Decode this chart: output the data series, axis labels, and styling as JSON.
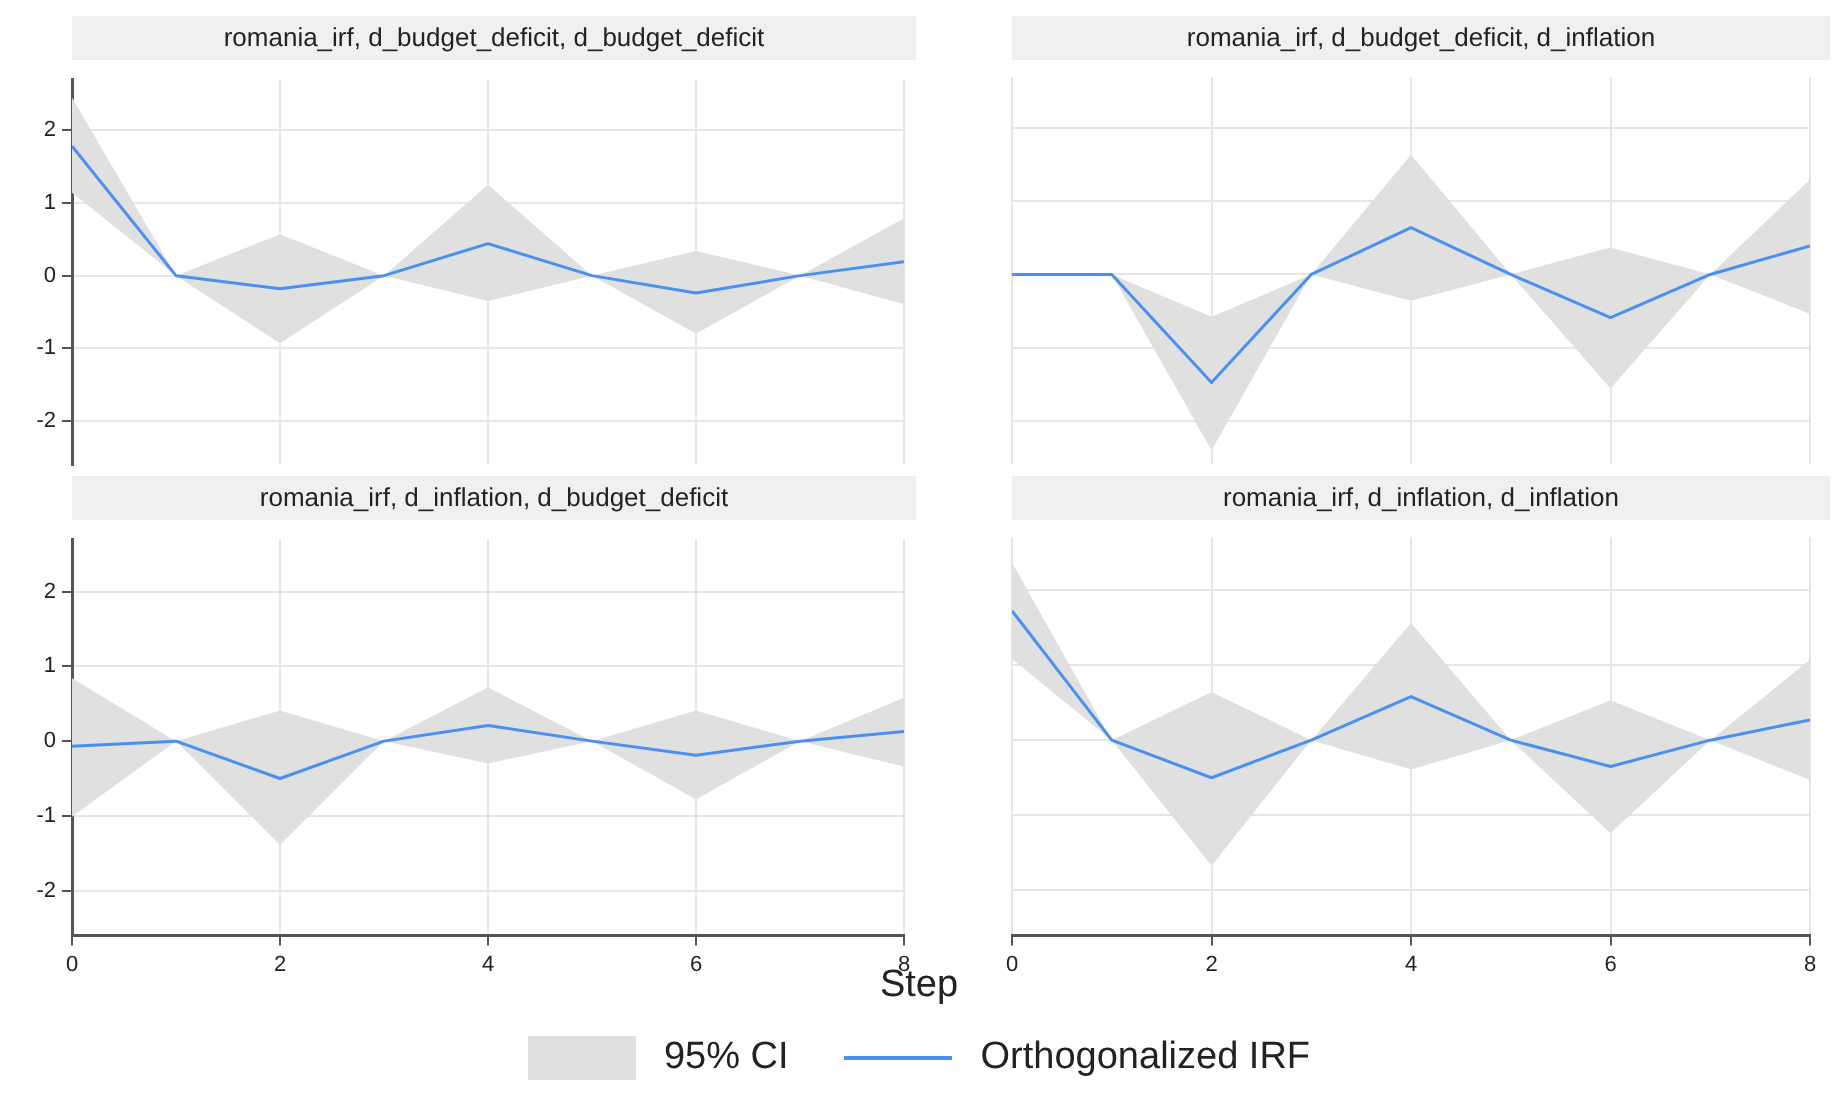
{
  "chart_data": [
    {
      "type": "line",
      "title": "romania_irf, d_budget_deficit, d_budget_deficit",
      "xlabel": "Step",
      "annotations": [
        "95% CI"
      ],
      "x": [
        0,
        1,
        2,
        3,
        4,
        5,
        6,
        7,
        8
      ],
      "xlim": [
        0,
        8
      ],
      "xticks": [
        0,
        2,
        4,
        6,
        8
      ],
      "ylim": [
        -2.6,
        2.7
      ],
      "yticks": [
        -2,
        -1,
        0,
        1,
        2
      ],
      "grid": true,
      "legend": "bottom",
      "tick_labels": "y",
      "series": [
        {
          "name": "Orthogonalized IRF",
          "color": "#4a90f0",
          "values": [
            1.78,
            0,
            -0.18,
            0,
            0.44,
            0,
            -0.24,
            0,
            0.19
          ],
          "lower": [
            1.14,
            0,
            -0.93,
            0,
            -0.35,
            0,
            -0.8,
            0,
            -0.39
          ],
          "upper": [
            2.45,
            0,
            0.57,
            0,
            1.25,
            0,
            0.34,
            0,
            0.79
          ]
        }
      ]
    },
    {
      "type": "line",
      "title": "romania_irf, d_budget_deficit, d_inflation",
      "x": [
        0,
        1,
        2,
        3,
        4,
        5,
        6,
        7,
        8
      ],
      "xlim": [
        0,
        8
      ],
      "xticks": [
        0,
        2,
        4,
        6,
        8
      ],
      "ylim": [
        -2.6,
        2.7
      ],
      "yticks": [
        -2,
        -1,
        0,
        1,
        2
      ],
      "grid": true,
      "tick_labels": false,
      "series": [
        {
          "color": "#4a90f0",
          "values": [
            0,
            0,
            -1.48,
            0,
            0.64,
            0,
            -0.59,
            0,
            0.39
          ],
          "lower": [
            0,
            0,
            -2.41,
            0,
            -0.36,
            0,
            -1.56,
            0,
            -0.54
          ],
          "upper": [
            0,
            0,
            -0.58,
            0,
            1.64,
            0,
            0.37,
            0,
            1.3
          ]
        }
      ]
    },
    {
      "type": "line",
      "title": "romania_irf, d_inflation, d_budget_deficit",
      "x": [
        0,
        1,
        2,
        3,
        4,
        5,
        6,
        7,
        8
      ],
      "xlim": [
        0,
        8
      ],
      "xticks": [
        0,
        2,
        4,
        6,
        8
      ],
      "ylim": [
        -2.6,
        2.7
      ],
      "yticks": [
        -2,
        -1,
        0,
        1,
        2
      ],
      "grid": true,
      "series": [
        {
          "color": "#4a90f0",
          "values": [
            -0.07,
            0,
            -0.5,
            0,
            0.21,
            0,
            -0.19,
            0,
            0.13
          ],
          "lower": [
            -1.01,
            0,
            -1.39,
            0,
            -0.3,
            0,
            -0.78,
            0,
            -0.34
          ],
          "upper": [
            0.84,
            0,
            0.41,
            0,
            0.72,
            0,
            0.41,
            0,
            0.58
          ]
        }
      ]
    },
    {
      "type": "line",
      "title": "romania_irf, d_inflation, d_inflation",
      "x": [
        0,
        1,
        2,
        3,
        4,
        5,
        6,
        7,
        8
      ],
      "xlim": [
        0,
        8
      ],
      "xticks": [
        0,
        2,
        4,
        6,
        8
      ],
      "ylim": [
        -2.6,
        2.7
      ],
      "yticks": [
        -2,
        -1,
        0,
        1,
        2
      ],
      "grid": true,
      "tick_labels": "x",
      "series": [
        {
          "color": "#4a90f0",
          "values": [
            1.72,
            0,
            -0.5,
            0,
            0.58,
            0,
            -0.35,
            0,
            0.27
          ],
          "lower": [
            1.08,
            0,
            -1.67,
            0,
            -0.39,
            0,
            -1.24,
            0,
            -0.53
          ],
          "upper": [
            2.36,
            0,
            0.64,
            0,
            1.56,
            0,
            0.53,
            0,
            1.07
          ]
        }
      ]
    }
  ]
}
